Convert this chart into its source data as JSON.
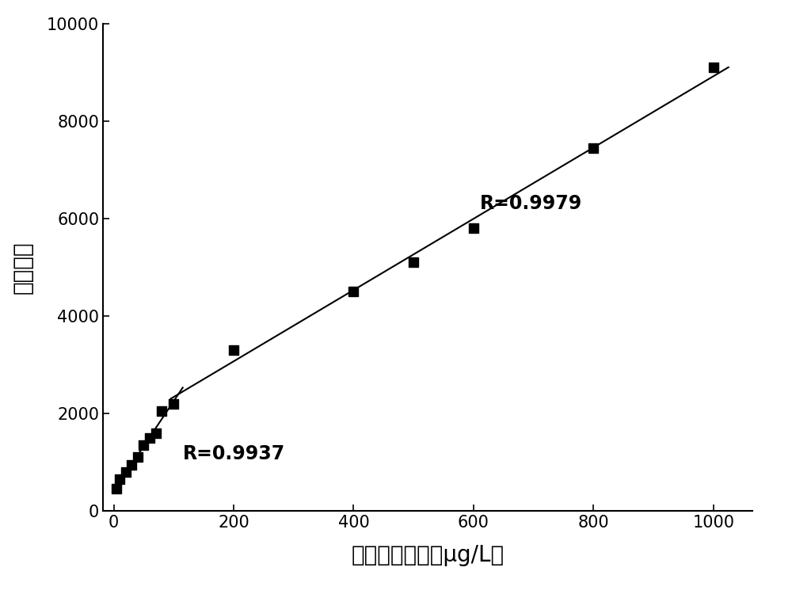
{
  "x_low": [
    5,
    10,
    20,
    30,
    40,
    50,
    60,
    70,
    80,
    100
  ],
  "y_low": [
    450,
    650,
    800,
    950,
    1100,
    1350,
    1500,
    1600,
    2050,
    2200
  ],
  "x_high": [
    200,
    400,
    500,
    600,
    800,
    1000
  ],
  "y_high": [
    3300,
    4500,
    5100,
    5800,
    7450,
    9100
  ],
  "R_low": "R=0.9937",
  "R_high": "R=0.9979",
  "R_low_pos": [
    115,
    1050
  ],
  "R_high_pos": [
    610,
    6200
  ],
  "xlabel": "对苯二胺浓度（μg/L）",
  "ylabel": "荧光强度",
  "xlim": [
    -18,
    1065
  ],
  "ylim": [
    0,
    10000
  ],
  "xticks": [
    0,
    200,
    400,
    600,
    800,
    1000
  ],
  "yticks": [
    0,
    2000,
    4000,
    6000,
    8000,
    10000
  ],
  "background_color": "#ffffff",
  "marker_color": "#000000",
  "line_color": "#000000",
  "line_extend_low_start": 0,
  "line_extend_low_end": 115,
  "line_extend_high_start": 95,
  "line_extend_high_end": 1025
}
